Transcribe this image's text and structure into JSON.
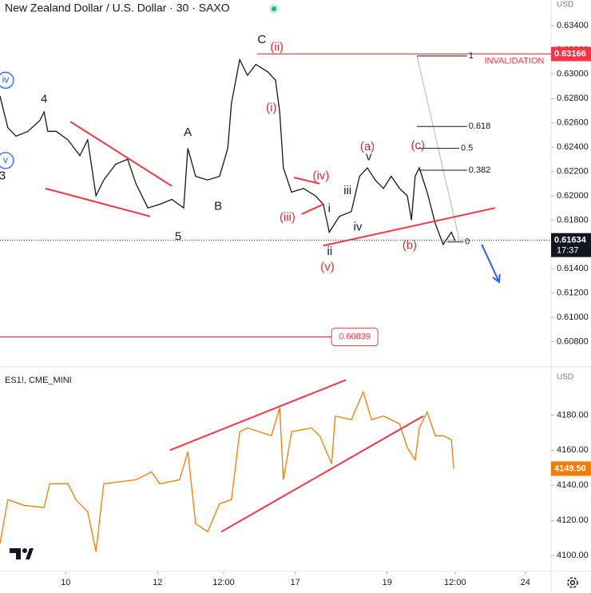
{
  "chart_data": [
    {
      "type": "line",
      "title": "New Zealand Dollar / U.S. Dollar · 30 · SAXO",
      "currency": "USD",
      "color": "#131722",
      "xlim": [
        0,
        12
      ],
      "ylim": [
        0.606,
        0.6361
      ],
      "yticks": [
        {
          "value": 0.608,
          "label": "0.60800"
        },
        {
          "value": 0.61,
          "label": "0.61000"
        },
        {
          "value": 0.612,
          "label": "0.61200"
        },
        {
          "value": 0.614,
          "label": "0.61400"
        },
        {
          "value": 0.616,
          "label": "0.61600"
        },
        {
          "value": 0.618,
          "label": "0.61800"
        },
        {
          "value": 0.62,
          "label": "0.62000"
        },
        {
          "value": 0.622,
          "label": "0.62200"
        },
        {
          "value": 0.624,
          "label": "0.62400"
        },
        {
          "value": 0.626,
          "label": "0.62600"
        },
        {
          "value": 0.628,
          "label": "0.62800"
        },
        {
          "value": 0.63,
          "label": "0.63000"
        },
        {
          "value": 0.632,
          "label": "0.63200"
        },
        {
          "value": 0.634,
          "label": "0.63400"
        }
      ],
      "x": [
        0,
        0.17,
        0.35,
        0.61,
        0.87,
        0.96,
        1.04,
        1.22,
        1.48,
        1.74,
        1.91,
        2.09,
        2.26,
        2.52,
        2.78,
        2.96,
        3.22,
        3.48,
        3.74,
        4,
        4.09,
        4.26,
        4.52,
        4.78,
        4.96,
        5.04,
        5.22,
        5.39,
        5.57,
        5.83,
        6,
        6.09,
        6.17,
        6.35,
        6.61,
        6.87,
        7.04,
        7.17,
        7.39,
        7.65,
        7.83,
        8,
        8.17,
        8.35,
        8.52,
        8.7,
        8.87,
        8.96,
        9.04,
        9.13,
        9.3,
        9.48,
        9.65,
        9.83,
        9.91
      ],
      "values": [
        0.6282,
        0.6256,
        0.6249,
        0.6253,
        0.6262,
        0.6269,
        0.6253,
        0.6253,
        0.6246,
        0.6233,
        0.6246,
        0.62,
        0.6213,
        0.6226,
        0.623,
        0.621,
        0.619,
        0.6193,
        0.6197,
        0.619,
        0.6239,
        0.6216,
        0.6213,
        0.6216,
        0.6239,
        0.6276,
        0.6312,
        0.6299,
        0.6308,
        0.6302,
        0.6295,
        0.6269,
        0.6223,
        0.6203,
        0.6206,
        0.62,
        0.6193,
        0.617,
        0.6183,
        0.6187,
        0.6216,
        0.6223,
        0.6213,
        0.6206,
        0.6216,
        0.6206,
        0.62,
        0.618,
        0.6216,
        0.6223,
        0.6203,
        0.6177,
        0.616,
        0.617,
        0.6163
      ],
      "last_price": {
        "value": 0.61634,
        "label": "0.61634"
      },
      "countdown": "17:37",
      "invalidation": {
        "value": 0.63166,
        "label": "0.63166",
        "text": "INVALIDATION",
        "x": [
          5.6,
          12
        ]
      },
      "target": {
        "value": 0.60839,
        "label": "0.60839",
        "x": [
          0,
          7.22
        ]
      },
      "trendline_color": "#f23645",
      "trendlines": [
        {
          "x": [
            1.53,
            3.74
          ],
          "y": [
            0.6261,
            0.6208
          ]
        },
        {
          "x": [
            0.99,
            3.27
          ],
          "y": [
            0.6206,
            0.6183
          ]
        },
        {
          "x": [
            7.04,
            10.78
          ],
          "y": [
            0.6159,
            0.619
          ]
        },
        {
          "x": [
            6.4,
            6.96
          ],
          "y": [
            0.6215,
            0.621
          ]
        },
        {
          "x": [
            6.57,
            7.04
          ],
          "y": [
            0.6185,
            0.6193
          ]
        }
      ],
      "fib_diagonal": {
        "x": [
          9.08,
          10
        ],
        "y": [
          0.6315,
          0.6164
        ],
        "color": "#b2b5be"
      },
      "arrow": {
        "x": [
          10.49,
          10.87
        ],
        "y": [
          0.616,
          0.6129
        ],
        "color": "#2962ff"
      },
      "fib": [
        {
          "label": "1",
          "value": 0.6315,
          "x": [
            9.08,
            10.17
          ]
        },
        {
          "label": "0.618",
          "value": 0.6257,
          "x": [
            9.08,
            10.17
          ]
        },
        {
          "label": "0.5",
          "value": 0.6239,
          "x": [
            9.08,
            10.0
          ]
        },
        {
          "label": "0.382",
          "value": 0.6221,
          "x": [
            9.13,
            10.17
          ]
        },
        {
          "label": "0",
          "value": 0.6162,
          "x": [
            9.74,
            10.09
          ]
        }
      ],
      "annotations": [
        {
          "text": "C",
          "x": 5.7,
          "y": 0.6328,
          "color": "#131722"
        },
        {
          "text": "(ii)",
          "x": 6.03,
          "y": 0.6322,
          "color": "#d32f2f"
        },
        {
          "text": "(i)",
          "x": 5.91,
          "y": 0.6272,
          "color": "#d32f2f"
        },
        {
          "text": "4",
          "x": 0.96,
          "y": 0.6279,
          "color": "#131722"
        },
        {
          "text": "A",
          "x": 4.09,
          "y": 0.6252,
          "color": "#131722"
        },
        {
          "text": "B",
          "x": 4.75,
          "y": 0.6191,
          "color": "#131722"
        },
        {
          "text": "5",
          "x": 3.88,
          "y": 0.6166,
          "color": "#131722"
        },
        {
          "text": "3",
          "x": 0.05,
          "y": 0.6216,
          "color": "#131722"
        },
        {
          "text": "(iv)",
          "x": 6.99,
          "y": 0.6216,
          "color": "#d32f2f"
        },
        {
          "text": "(iii)",
          "x": 6.26,
          "y": 0.6182,
          "color": "#d32f2f"
        },
        {
          "text": "i",
          "x": 7.17,
          "y": 0.6189,
          "color": "#131722"
        },
        {
          "text": "ii",
          "x": 7.18,
          "y": 0.6154,
          "color": "#131722"
        },
        {
          "text": "(v)",
          "x": 7.13,
          "y": 0.6141,
          "color": "#d32f2f"
        },
        {
          "text": "iii",
          "x": 7.57,
          "y": 0.6204,
          "color": "#131722"
        },
        {
          "text": "iv",
          "x": 7.79,
          "y": 0.6174,
          "color": "#131722"
        },
        {
          "text": "v",
          "x": 8.03,
          "y": 0.6232,
          "color": "#131722"
        },
        {
          "text": "(a)",
          "x": 8,
          "y": 0.624,
          "color": "#d32f2f"
        },
        {
          "text": "(c)",
          "x": 9.1,
          "y": 0.6241,
          "color": "#d32f2f"
        },
        {
          "text": "(b)",
          "x": 8.92,
          "y": 0.6159,
          "color": "#d32f2f"
        },
        {
          "text": "iv",
          "x": 0.12,
          "y": 0.6295,
          "color": "#2962ff",
          "circled": true
        },
        {
          "text": "v",
          "x": 0.12,
          "y": 0.6229,
          "color": "#2962ff",
          "circled": true
        }
      ]
    },
    {
      "type": "line",
      "title": "ES1!, CME_MINI",
      "currency": "USD",
      "color": "#f57c00",
      "xlim": [
        0,
        12
      ],
      "ylim": [
        4091,
        4207
      ],
      "yticks": [
        {
          "value": 4100,
          "label": "4100.00"
        },
        {
          "value": 4120,
          "label": "4120.00"
        },
        {
          "value": 4140,
          "label": "4140.00"
        },
        {
          "value": 4160,
          "label": "4160.00"
        },
        {
          "value": 4180,
          "label": "4180.00"
        }
      ],
      "xticks": [
        {
          "value": 1.43,
          "label": "10"
        },
        {
          "value": 3.43,
          "label": "12"
        },
        {
          "value": 4.87,
          "label": "12:00"
        },
        {
          "value": 6.43,
          "label": "17"
        },
        {
          "value": 8.43,
          "label": "19"
        },
        {
          "value": 9.91,
          "label": "12:00"
        },
        {
          "value": 11.44,
          "label": "24"
        }
      ],
      "x": [
        0,
        0.17,
        0.52,
        0.96,
        1.08,
        1.48,
        1.65,
        1.91,
        2.09,
        2.26,
        2.96,
        3.3,
        3.48,
        3.91,
        4.09,
        4.26,
        4.52,
        4.78,
        5.04,
        5.22,
        5.39,
        5.91,
        6.09,
        6.17,
        6.35,
        6.78,
        6.96,
        7.22,
        7.3,
        7.65,
        7.91,
        8.09,
        8.35,
        8.7,
        8.87,
        9.04,
        9.13,
        9.3,
        9.48,
        9.65,
        9.83,
        9.88
      ],
      "values": [
        4106.8,
        4131.8,
        4128.6,
        4127.3,
        4140.9,
        4140.9,
        4131.8,
        4125,
        4102.3,
        4140.9,
        4143.2,
        4147.7,
        4140.9,
        4143.2,
        4159.1,
        4118.2,
        4113.6,
        4129.5,
        4131.8,
        4170.5,
        4172.7,
        4168.2,
        4184.1,
        4143.2,
        4170.5,
        4172.7,
        4168.2,
        4152.3,
        4179.5,
        4177.3,
        4193.2,
        4177.3,
        4179.5,
        4175,
        4161.4,
        4154.5,
        4172.7,
        4181.8,
        4168.2,
        4168.2,
        4165.9,
        4149.5
      ],
      "last_price": {
        "value": 4149.5,
        "label": "4149.50"
      },
      "trendline_color": "#f23645",
      "trendlines": [
        {
          "x": [
            3.7,
            7.53
          ],
          "y": [
            4160,
            4200
          ]
        },
        {
          "x": [
            4.82,
            9.22
          ],
          "y": [
            4113.6,
            4179.5
          ]
        }
      ]
    }
  ]
}
